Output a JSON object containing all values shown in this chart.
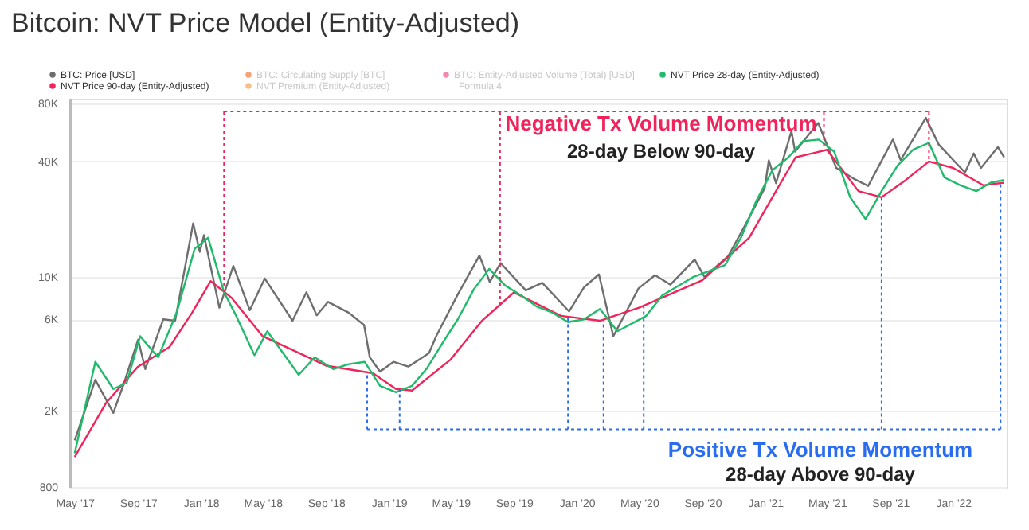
{
  "chart_data": {
    "type": "line",
    "title": "Bitcoin: NVT Price Model (Entity-Adjusted)",
    "log": "y",
    "grid": "y",
    "legend": "top left",
    "xlim": [
      "2017-04-22",
      "2022-04-15"
    ],
    "ylim": [
      800,
      85000
    ],
    "xticks": [
      {
        "value": "2017-05-01",
        "label": "May '17"
      },
      {
        "value": "2017-09-01",
        "label": "Sep '17"
      },
      {
        "value": "2018-01-01",
        "label": "Jan '18"
      },
      {
        "value": "2018-05-01",
        "label": "May '18"
      },
      {
        "value": "2018-09-01",
        "label": "Sep '18"
      },
      {
        "value": "2019-01-01",
        "label": "Jan '19"
      },
      {
        "value": "2019-05-01",
        "label": "May '19"
      },
      {
        "value": "2019-09-01",
        "label": "Sep '19"
      },
      {
        "value": "2020-01-01",
        "label": "Jan '20"
      },
      {
        "value": "2020-05-01",
        "label": "May '20"
      },
      {
        "value": "2020-09-01",
        "label": "Sep '20"
      },
      {
        "value": "2021-01-01",
        "label": "Jan '21"
      },
      {
        "value": "2021-05-01",
        "label": "May '21"
      },
      {
        "value": "2021-09-01",
        "label": "Sep '21"
      },
      {
        "value": "2022-01-01",
        "label": "Jan '22"
      }
    ],
    "yticks": [
      800,
      {
        "value": 2000,
        "label": "2K"
      },
      {
        "value": 6000,
        "label": "6K"
      },
      {
        "value": 10000,
        "label": "10K"
      },
      {
        "value": 40000,
        "label": "40K"
      },
      {
        "value": 80000,
        "label": "80K"
      }
    ],
    "series": [
      {
        "name": "BTC: Price [USD]",
        "color": "#6e6e6e",
        "x": [
          "2017-05-01",
          "2017-06-10",
          "2017-07-15",
          "2017-08-05",
          "2017-09-01",
          "2017-09-15",
          "2017-10-20",
          "2017-11-12",
          "2017-12-17",
          "2017-12-30",
          "2018-01-07",
          "2018-02-06",
          "2018-03-05",
          "2018-04-06",
          "2018-05-05",
          "2018-06-28",
          "2018-07-25",
          "2018-08-14",
          "2018-09-05",
          "2018-10-15",
          "2018-11-14",
          "2018-11-25",
          "2018-12-15",
          "2019-01-10",
          "2019-02-08",
          "2019-03-20",
          "2019-04-03",
          "2019-05-14",
          "2019-06-26",
          "2019-07-16",
          "2019-08-06",
          "2019-09-24",
          "2019-10-26",
          "2019-12-17",
          "2020-01-15",
          "2020-02-13",
          "2020-03-12",
          "2020-04-30",
          "2020-06-01",
          "2020-07-01",
          "2020-08-17",
          "2020-09-05",
          "2020-10-21",
          "2020-11-25",
          "2020-12-31",
          "2021-01-08",
          "2021-01-22",
          "2021-02-21",
          "2021-02-28",
          "2021-04-14",
          "2021-05-19",
          "2021-06-22",
          "2021-07-20",
          "2021-09-06",
          "2021-09-21",
          "2021-11-09",
          "2021-12-04",
          "2022-01-24",
          "2022-02-10",
          "2022-02-24",
          "2022-03-29",
          "2022-04-10"
        ],
        "values": [
          1400,
          2900,
          1950,
          2800,
          4700,
          3300,
          6000,
          5900,
          19000,
          13500,
          16500,
          6900,
          11400,
          6700,
          9800,
          5900,
          8300,
          6300,
          7400,
          6500,
          5600,
          3800,
          3200,
          3600,
          3400,
          4000,
          4900,
          8000,
          12900,
          9400,
          11800,
          8500,
          9300,
          6600,
          8800,
          10300,
          4900,
          8700,
          10200,
          9100,
          12300,
          10000,
          12800,
          19000,
          29000,
          40500,
          30800,
          57500,
          45000,
          63500,
          37000,
          32500,
          29800,
          52000,
          40700,
          67500,
          49000,
          35000,
          44000,
          37000,
          47500,
          42000
        ]
      },
      {
        "name": "NVT Price 90-day (Entity-Adjusted)",
        "color": "#f0245a",
        "x": [
          "2017-05-01",
          "2017-07-01",
          "2017-09-01",
          "2017-11-01",
          "2017-12-15",
          "2018-01-20",
          "2018-03-01",
          "2018-05-01",
          "2018-09-01",
          "2018-12-01",
          "2019-01-15",
          "2019-02-15",
          "2019-05-01",
          "2019-07-01",
          "2019-09-01",
          "2019-12-01",
          "2020-02-15",
          "2020-05-01",
          "2020-09-01",
          "2020-12-01",
          "2021-01-15",
          "2021-03-01",
          "2021-05-01",
          "2021-07-01",
          "2021-08-15",
          "2021-10-01",
          "2021-11-15",
          "2022-01-01",
          "2022-03-01",
          "2022-04-10"
        ],
        "values": [
          1150,
          2200,
          3400,
          4300,
          6500,
          9500,
          7800,
          4900,
          3440,
          3140,
          2600,
          2550,
          3700,
          5900,
          8300,
          6260,
          5900,
          6900,
          9600,
          16000,
          26000,
          42000,
          46000,
          28000,
          26000,
          32000,
          40000,
          37000,
          30000,
          31000
        ]
      },
      {
        "name": "NVT Price 28-day (Entity-Adjusted)",
        "color": "#1fba6a",
        "x": [
          "2017-05-01",
          "2017-06-10",
          "2017-07-15",
          "2017-08-10",
          "2017-09-05",
          "2017-10-10",
          "2017-11-15",
          "2017-12-20",
          "2018-01-15",
          "2018-02-15",
          "2018-03-10",
          "2018-04-15",
          "2018-05-10",
          "2018-07-10",
          "2018-08-10",
          "2018-09-15",
          "2018-10-15",
          "2018-11-15",
          "2018-12-15",
          "2019-01-15",
          "2019-02-15",
          "2019-03-15",
          "2019-04-15",
          "2019-05-15",
          "2019-06-15",
          "2019-07-15",
          "2019-08-15",
          "2019-09-15",
          "2019-10-15",
          "2019-11-15",
          "2019-12-15",
          "2020-01-15",
          "2020-02-15",
          "2020-03-20",
          "2020-05-15",
          "2020-06-15",
          "2020-08-15",
          "2020-10-15",
          "2020-11-15",
          "2020-12-15",
          "2021-01-15",
          "2021-02-15",
          "2021-03-15",
          "2021-04-15",
          "2021-05-15",
          "2021-06-15",
          "2021-07-15",
          "2021-08-15",
          "2021-09-15",
          "2021-10-15",
          "2021-11-15",
          "2021-12-15",
          "2022-01-15",
          "2022-02-15",
          "2022-03-15",
          "2022-04-10"
        ],
        "values": [
          1200,
          3600,
          2600,
          2800,
          4900,
          3800,
          6500,
          14000,
          16000,
          8300,
          6300,
          3900,
          5200,
          3080,
          3800,
          3300,
          3500,
          3600,
          2700,
          2500,
          2700,
          3300,
          4500,
          6000,
          8600,
          11000,
          9000,
          8000,
          7000,
          6500,
          5800,
          6000,
          6800,
          5200,
          6260,
          8000,
          10000,
          11500,
          16000,
          25000,
          36000,
          42000,
          51000,
          52000,
          45000,
          26000,
          20000,
          28000,
          38000,
          46000,
          50000,
          33000,
          30000,
          28000,
          31000,
          32000
        ]
      }
    ],
    "ref_lines": [
      {
        "axis": "y",
        "value": 73000,
        "color": "#f0245a",
        "line_style": "dotted"
      },
      {
        "axis": "x",
        "value": "2018-02-15",
        "color": "#f0245a",
        "line_style": "dotted"
      },
      {
        "axis": "x",
        "value": "2019-08-05",
        "color": "#f0245a",
        "line_style": "dotted"
      },
      {
        "axis": "x",
        "value": "2021-04-25",
        "color": "#f0245a",
        "line_style": "dotted"
      },
      {
        "axis": "x",
        "value": "2021-11-15",
        "color": "#f0245a",
        "line_style": "dotted"
      },
      {
        "axis": "y",
        "value": 1600,
        "color": "#2a6cf0",
        "line_style": "dotted"
      },
      {
        "axis": "x",
        "value": "2018-11-20",
        "color": "#2a6cf0",
        "line_style": "dotted"
      },
      {
        "axis": "x",
        "value": "2019-01-22",
        "color": "#2a6cf0",
        "line_style": "dotted"
      },
      {
        "axis": "x",
        "value": "2019-12-15",
        "color": "#2a6cf0",
        "line_style": "dotted"
      },
      {
        "axis": "x",
        "value": "2020-02-22",
        "color": "#2a6cf0",
        "line_style": "dotted"
      },
      {
        "axis": "x",
        "value": "2020-05-10",
        "color": "#2a6cf0",
        "line_style": "dotted"
      },
      {
        "axis": "x",
        "value": "2021-08-15",
        "color": "#2a6cf0",
        "line_style": "dotted"
      },
      {
        "axis": "x",
        "value": "2022-04-03",
        "color": "#2a6cf0",
        "line_style": "dotted"
      }
    ],
    "annotations": [
      "Negative Tx Volume Momentum",
      "28-day Below 90-day",
      "Positive Tx Volume Momentum",
      "28-day Above 90-day",
      "BTC: Circulating Supply [BTC]",
      "NVT Premium (Entity-Adjusted)",
      "BTC: Entity-Adjusted Volume (Total) [USD]",
      "Formula 4"
    ]
  }
}
